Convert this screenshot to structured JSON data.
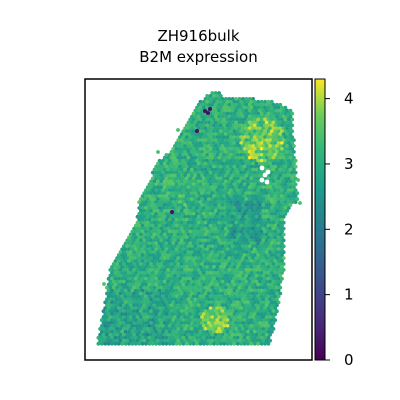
{
  "chart_data": {
    "type": "scatter",
    "subtype": "spatial-hexbin",
    "title_line1": "ZH916bulk",
    "title_line2": "B2M expression",
    "xlabel": "",
    "ylabel": "",
    "colorbar": {
      "colormap": "viridis",
      "vmin": 0,
      "vmax": 4.3,
      "ticks": [
        "0",
        "1",
        "2",
        "3",
        "4"
      ],
      "tick_values": [
        0,
        1,
        2,
        3,
        4
      ]
    },
    "axes_ticks_visible": false,
    "grid": false,
    "value_range_observed": [
      0,
      4.3
    ],
    "typical_value": 3.2,
    "notes_points": "Several thousand hexagonal spots forming the tissue section; values mostly 2.5-3.8, a few near 0 (dark purple) near the top edge."
  }
}
